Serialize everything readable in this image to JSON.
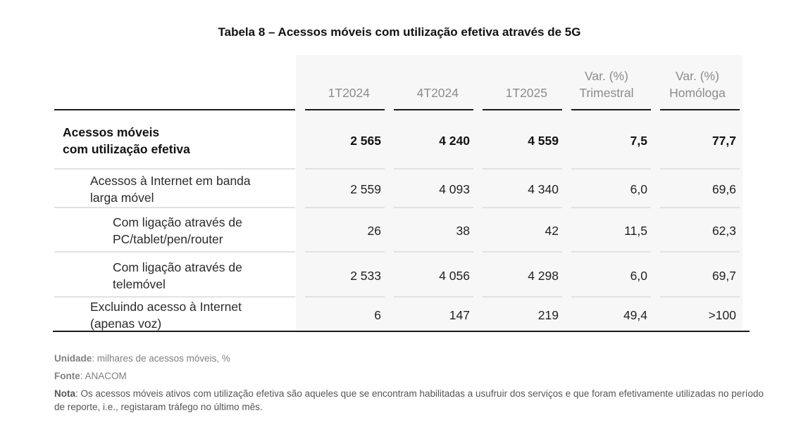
{
  "title": "Tabela 8 – Acessos móveis com utilização efetiva através de 5G",
  "headers": [
    {
      "line1": "",
      "line2": "1T2024"
    },
    {
      "line1": "",
      "line2": "4T2024"
    },
    {
      "line1": "",
      "line2": "1T2025"
    },
    {
      "line1": "Var. (%)",
      "line2": "Trimestral"
    },
    {
      "line1": "Var. (%)",
      "line2": "Homóloga"
    }
  ],
  "rows": [
    {
      "label_line1": "Acessos móveis",
      "label_line2": "com utilização efetiva",
      "values": [
        "2 565",
        "4 240",
        "4 559",
        "7,5",
        "77,7"
      ]
    },
    {
      "label_line1": "Acessos à Internet em banda",
      "label_line2": "larga móvel",
      "values": [
        "2 559",
        "4 093",
        "4 340",
        "6,0",
        "69,6"
      ]
    },
    {
      "label_line1": "Com ligação através de",
      "label_line2": "PC/tablet/pen/router",
      "values": [
        "26",
        "38",
        "42",
        "11,5",
        "62,3"
      ]
    },
    {
      "label_line1": "Com ligação através de",
      "label_line2": "telemóvel",
      "values": [
        "2 533",
        "4 056",
        "4 298",
        "6,0",
        "69,7"
      ]
    },
    {
      "label_line1": "Excluindo acesso à Internet",
      "label_line2": "(apenas voz)",
      "values": [
        "6",
        "147",
        "219",
        "49,4",
        ">100"
      ]
    }
  ],
  "notes": {
    "unit_label": "Unidade",
    "unit_text": ": milhares de acessos móveis, %",
    "source_label": "Fonte",
    "source_text": ": ANACOM",
    "note_label": "Nota",
    "note_text": ": Os acessos móveis ativos com utilização efetiva são aqueles que se encontram habilitadas a usufruir dos serviços e que foram efetivamente utilizadas no período de reporte, i.e., registaram tráfego no último mês."
  }
}
